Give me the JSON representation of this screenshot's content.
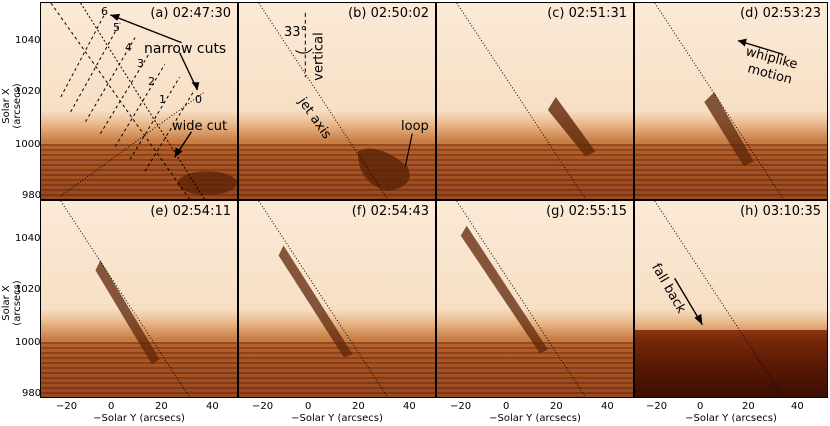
{
  "panels": [
    {
      "label": "(a) 02:47:30"
    },
    {
      "label": "(b) 02:50:02"
    },
    {
      "label": "(c) 02:51:31"
    },
    {
      "label": "(d) 02:53:23"
    },
    {
      "label": "(e) 02:54:11"
    },
    {
      "label": "(f) 02:54:43"
    },
    {
      "label": "(g) 02:55:15"
    },
    {
      "label": "(h) 03:10:35"
    }
  ],
  "axes": {
    "ylabel": "Solar X (arcsecs)",
    "xlabel": "−Solar Y (arcsecs)",
    "yticks": [
      "1040",
      "1020",
      "1000",
      "980"
    ],
    "xticks": [
      "−20",
      "0",
      "20",
      "40"
    ]
  },
  "annotations": {
    "narrow_cuts": "narrow cuts",
    "wide_cut": "wide cut",
    "cut_numbers": [
      "6",
      "5",
      "4",
      "3",
      "2",
      "1",
      "0"
    ],
    "angle": "33°",
    "vertical": "vertical",
    "jet_axis": "jet axis",
    "loop": "loop",
    "whiplike": "whiplike",
    "motion": "motion",
    "fall_back": "fall back"
  },
  "colors": {
    "bright": "#fbead7",
    "mid": "#e9b78a",
    "dark": "#7a3a12"
  }
}
